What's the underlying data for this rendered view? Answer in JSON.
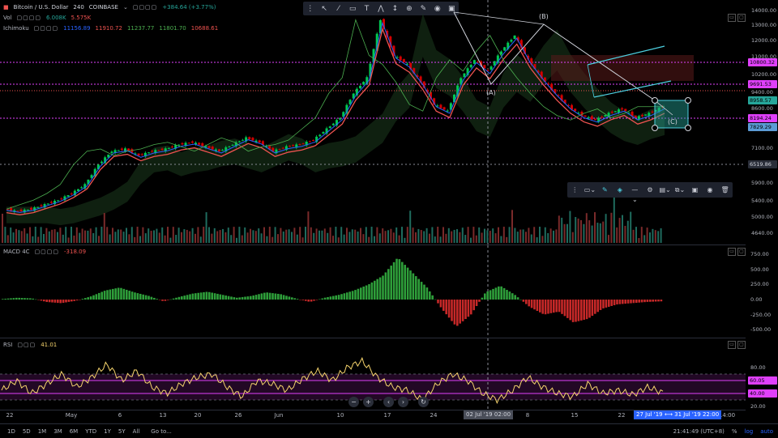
{
  "header": {
    "symbol_title": "Bitcoin / U.S. Dollar",
    "interval": "240",
    "exchange": "COINBASE",
    "change": "+384.64 (+3.77%)",
    "vol_label": "Vol",
    "vol_val1": "6.008K",
    "vol_val2": "5.575K",
    "ichi_label": "Ichimoku",
    "ichi_vals": [
      "11156.89",
      "11910.72",
      "11237.77",
      "11801.70",
      "10688.61"
    ]
  },
  "toolbar": {
    "icons": [
      "grid-icon",
      "cursor-icon",
      "trendline-icon",
      "rectangle-icon",
      "text-icon",
      "pattern-icon",
      "measure-icon",
      "zoom-icon",
      "brush-icon",
      "eye-icon",
      "lock-icon"
    ]
  },
  "price_axis": {
    "ticks": [
      "14000.00",
      "13000.00",
      "12000.00",
      "11000.00",
      "10200.00",
      "9400.00",
      "8600.00",
      "7900.00",
      "7100.00",
      "6300.00",
      "5900.00",
      "5400.00",
      "5000.00",
      "4640.00"
    ],
    "tags": [
      {
        "text": "10800.32",
        "bg": "#e040fb",
        "fg": "#000"
      },
      {
        "text": "9691.53",
        "bg": "#e040fb",
        "fg": "#000"
      },
      {
        "text": "8958.57",
        "bg": "#26a69a",
        "fg": "#000"
      },
      {
        "text": "8194.24",
        "bg": "#e040fb",
        "fg": "#000"
      },
      {
        "text": "7829.29",
        "bg": "#5b9bd5",
        "fg": "#000"
      },
      {
        "text": "6519.86",
        "bg": "#2a2e39",
        "fg": "#d1d4dc"
      }
    ]
  },
  "pattern_labels": {
    "a": "(A)",
    "b": "(B)",
    "c": "(C)"
  },
  "macd": {
    "label": "MACD 4C",
    "val": "-318.09",
    "ticks": [
      "750.00",
      "500.00",
      "250.00",
      "0.00",
      "-250.00",
      "-500.00"
    ]
  },
  "rsi": {
    "label": "RSI",
    "val": "41.01",
    "ticks": [
      "80.00",
      "60.00",
      "40.00",
      "20.00"
    ],
    "tag1": "60.05",
    "tag2": "40.00"
  },
  "xaxis": {
    "labels": [
      "22",
      "May",
      "6",
      "13",
      "20",
      "26",
      "Jun",
      "10",
      "17",
      "24",
      "8",
      "15",
      "22",
      "14:00"
    ],
    "crosshair_label": "02 Jul '19  02:00",
    "range_label": "27 Jul '19  ⟷  31 Jul '19  22:00"
  },
  "bottom": {
    "ranges": [
      "1D",
      "5D",
      "1M",
      "3M",
      "6M",
      "YTD",
      "1Y",
      "5Y",
      "All"
    ],
    "goto": "Go to...",
    "clock": "21:41:49 (UTC+8)",
    "pct": "%",
    "log": "log",
    "auto": "auto"
  },
  "colors": {
    "up": "#26a69a",
    "down": "#ef5350",
    "up_bright": "#00c853",
    "down_bright": "#d50000",
    "magenta": "#e040fb",
    "rsi": "#f5d36c",
    "cyan": "#4dd0e1"
  },
  "chart_data": {
    "type": "line",
    "title": "Bitcoin / U.S. Dollar 240 COINBASE",
    "ylim": [
      4400,
      14400
    ],
    "series": [
      {
        "name": "price",
        "values": [
          5300,
          5200,
          5300,
          5500,
          5700,
          6000,
          6400,
          7300,
          7900,
          8000,
          7700,
          7900,
          8000,
          8200,
          8300,
          8100,
          7900,
          8200,
          8500,
          8300,
          7900,
          8100,
          8200,
          8400,
          8900,
          9400,
          10500,
          11200,
          13800,
          12200,
          11800,
          11000,
          10000,
          9700,
          11200,
          12000,
          11500,
          12400,
          13100,
          12000,
          11200,
          10500,
          9900,
          9500,
          9300,
          9600,
          9800,
          9400,
          9600,
          9900
        ]
      }
    ],
    "horizontal_levels": [
      10800.32,
      9691.53,
      8194.24,
      6519.86
    ],
    "macd_values": [
      10,
      30,
      20,
      -40,
      -60,
      -20,
      50,
      150,
      200,
      120,
      60,
      -30,
      40,
      100,
      130,
      80,
      30,
      60,
      120,
      90,
      20,
      -40,
      30,
      80,
      150,
      250,
      400,
      700,
      450,
      200,
      -150,
      -450,
      -250,
      120,
      230,
      80,
      -120,
      -250,
      -200,
      -380,
      -320,
      -150,
      -80,
      -60,
      -40,
      -30
    ],
    "rsi_values": [
      45,
      60,
      40,
      55,
      70,
      50,
      65,
      85,
      60,
      75,
      50,
      40,
      55,
      65,
      70,
      50,
      35,
      60,
      55,
      45,
      62,
      75,
      60,
      80,
      90,
      65,
      50,
      45,
      30,
      55,
      70,
      60,
      40,
      30,
      45,
      65,
      50,
      40,
      35,
      55,
      40,
      45,
      38,
      50,
      41
    ]
  }
}
